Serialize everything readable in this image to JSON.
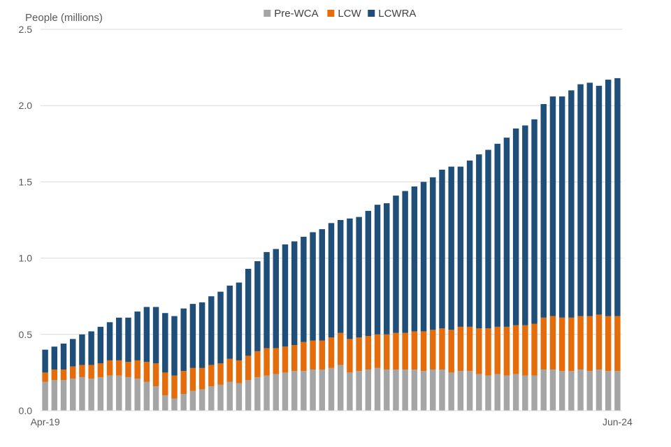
{
  "chart_data": {
    "type": "bar",
    "stacked": true,
    "ylabel": "People (millions)",
    "xlabel": "",
    "ylim": [
      0,
      2.5
    ],
    "yticks": [
      0.0,
      0.5,
      1.0,
      1.5,
      2.0,
      2.5
    ],
    "ytick_labels": [
      "0.0",
      "0.5",
      "1.0",
      "1.5",
      "2.0",
      "2.5"
    ],
    "x_tick_labels": [
      {
        "index": 0,
        "label": "Apr-19"
      },
      {
        "index": 62,
        "label": "Jun-24"
      }
    ],
    "grid": true,
    "legend_position": "top",
    "series": [
      {
        "name": "Pre-WCA",
        "color": "#a5a5a5",
        "values": [
          0.19,
          0.2,
          0.2,
          0.21,
          0.22,
          0.21,
          0.22,
          0.23,
          0.23,
          0.22,
          0.21,
          0.19,
          0.16,
          0.1,
          0.08,
          0.11,
          0.13,
          0.14,
          0.16,
          0.17,
          0.19,
          0.18,
          0.2,
          0.22,
          0.23,
          0.24,
          0.25,
          0.26,
          0.26,
          0.27,
          0.27,
          0.28,
          0.3,
          0.25,
          0.26,
          0.27,
          0.28,
          0.27,
          0.27,
          0.27,
          0.27,
          0.26,
          0.27,
          0.27,
          0.25,
          0.26,
          0.26,
          0.24,
          0.23,
          0.24,
          0.23,
          0.24,
          0.23,
          0.23,
          0.27,
          0.27,
          0.26,
          0.26,
          0.27,
          0.26,
          0.27,
          0.26,
          0.26
        ]
      },
      {
        "name": "LCW",
        "color": "#e46c0a",
        "values": [
          0.06,
          0.07,
          0.07,
          0.08,
          0.08,
          0.09,
          0.09,
          0.1,
          0.1,
          0.1,
          0.12,
          0.13,
          0.15,
          0.15,
          0.15,
          0.15,
          0.15,
          0.14,
          0.14,
          0.14,
          0.15,
          0.15,
          0.16,
          0.17,
          0.18,
          0.17,
          0.17,
          0.17,
          0.19,
          0.19,
          0.19,
          0.2,
          0.21,
          0.22,
          0.22,
          0.22,
          0.22,
          0.23,
          0.24,
          0.24,
          0.25,
          0.26,
          0.26,
          0.27,
          0.28,
          0.29,
          0.29,
          0.3,
          0.31,
          0.31,
          0.32,
          0.32,
          0.33,
          0.34,
          0.34,
          0.35,
          0.35,
          0.35,
          0.35,
          0.36,
          0.36,
          0.36,
          0.36
        ]
      },
      {
        "name": "LCWRA",
        "color": "#1f4e79",
        "values": [
          0.15,
          0.15,
          0.17,
          0.18,
          0.2,
          0.22,
          0.24,
          0.25,
          0.28,
          0.29,
          0.32,
          0.36,
          0.37,
          0.39,
          0.39,
          0.41,
          0.42,
          0.43,
          0.45,
          0.47,
          0.48,
          0.51,
          0.57,
          0.59,
          0.63,
          0.65,
          0.67,
          0.68,
          0.69,
          0.71,
          0.73,
          0.75,
          0.74,
          0.79,
          0.79,
          0.82,
          0.85,
          0.86,
          0.9,
          0.93,
          0.95,
          0.98,
          1.0,
          1.04,
          1.07,
          1.05,
          1.09,
          1.14,
          1.17,
          1.2,
          1.24,
          1.29,
          1.31,
          1.34,
          1.4,
          1.44,
          1.45,
          1.49,
          1.52,
          1.53,
          1.5,
          1.55,
          1.56
        ]
      }
    ]
  }
}
